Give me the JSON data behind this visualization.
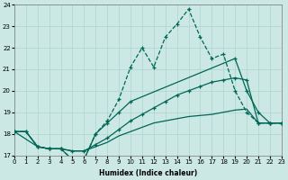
{
  "xlabel": "Humidex (Indice chaleur)",
  "bg_color": "#cce8e4",
  "grid_color": "#aad4cc",
  "line_color": "#006655",
  "xlim": [
    0,
    23
  ],
  "ylim": [
    17,
    24
  ],
  "yticks": [
    17,
    18,
    19,
    20,
    21,
    22,
    23,
    24
  ],
  "xticks": [
    0,
    1,
    2,
    3,
    4,
    5,
    6,
    7,
    8,
    9,
    10,
    11,
    12,
    13,
    14,
    15,
    16,
    17,
    18,
    19,
    20,
    21,
    22,
    23
  ],
  "line1_x": [
    0,
    1,
    2,
    3,
    4,
    5,
    6,
    7,
    8,
    9,
    10,
    11,
    12,
    13,
    14,
    15,
    16,
    17,
    18,
    19,
    20,
    21,
    22,
    23
  ],
  "line1_y": [
    18.1,
    18.1,
    17.4,
    17.3,
    17.3,
    16.8,
    16.8,
    18.0,
    18.6,
    19.6,
    21.1,
    22.0,
    21.1,
    22.5,
    23.1,
    23.8,
    22.5,
    21.5,
    21.7,
    20.0,
    19.0,
    18.5,
    18.5,
    18.5
  ],
  "line2_x": [
    0,
    2,
    3,
    4,
    5,
    6,
    7,
    8,
    9,
    10,
    19,
    20,
    21,
    22,
    23
  ],
  "line2_y": [
    18.1,
    17.4,
    17.3,
    17.3,
    16.8,
    16.8,
    18.0,
    18.5,
    19.0,
    19.5,
    21.5,
    20.0,
    19.0,
    18.5,
    18.5
  ],
  "line3_x": [
    0,
    1,
    2,
    3,
    4,
    5,
    6,
    7,
    8,
    9,
    10,
    11,
    12,
    13,
    14,
    15,
    16,
    17,
    18,
    19,
    20,
    21,
    22,
    23
  ],
  "line3_y": [
    18.1,
    18.1,
    17.4,
    17.3,
    17.3,
    17.2,
    17.2,
    17.4,
    17.6,
    17.9,
    18.1,
    18.3,
    18.5,
    18.6,
    18.7,
    18.8,
    18.85,
    18.9,
    19.0,
    19.1,
    19.15,
    18.5,
    18.5,
    18.5
  ],
  "line4_x": [
    0,
    1,
    2,
    3,
    4,
    5,
    6,
    7,
    8,
    9,
    10,
    11,
    12,
    13,
    14,
    15,
    16,
    17,
    18,
    19,
    20,
    21,
    22,
    23
  ],
  "line4_y": [
    18.1,
    18.1,
    17.4,
    17.3,
    17.3,
    17.2,
    17.2,
    17.5,
    17.8,
    18.2,
    18.6,
    18.9,
    19.2,
    19.5,
    19.8,
    20.0,
    20.2,
    20.4,
    20.5,
    20.6,
    20.5,
    18.5,
    18.5,
    18.5
  ]
}
